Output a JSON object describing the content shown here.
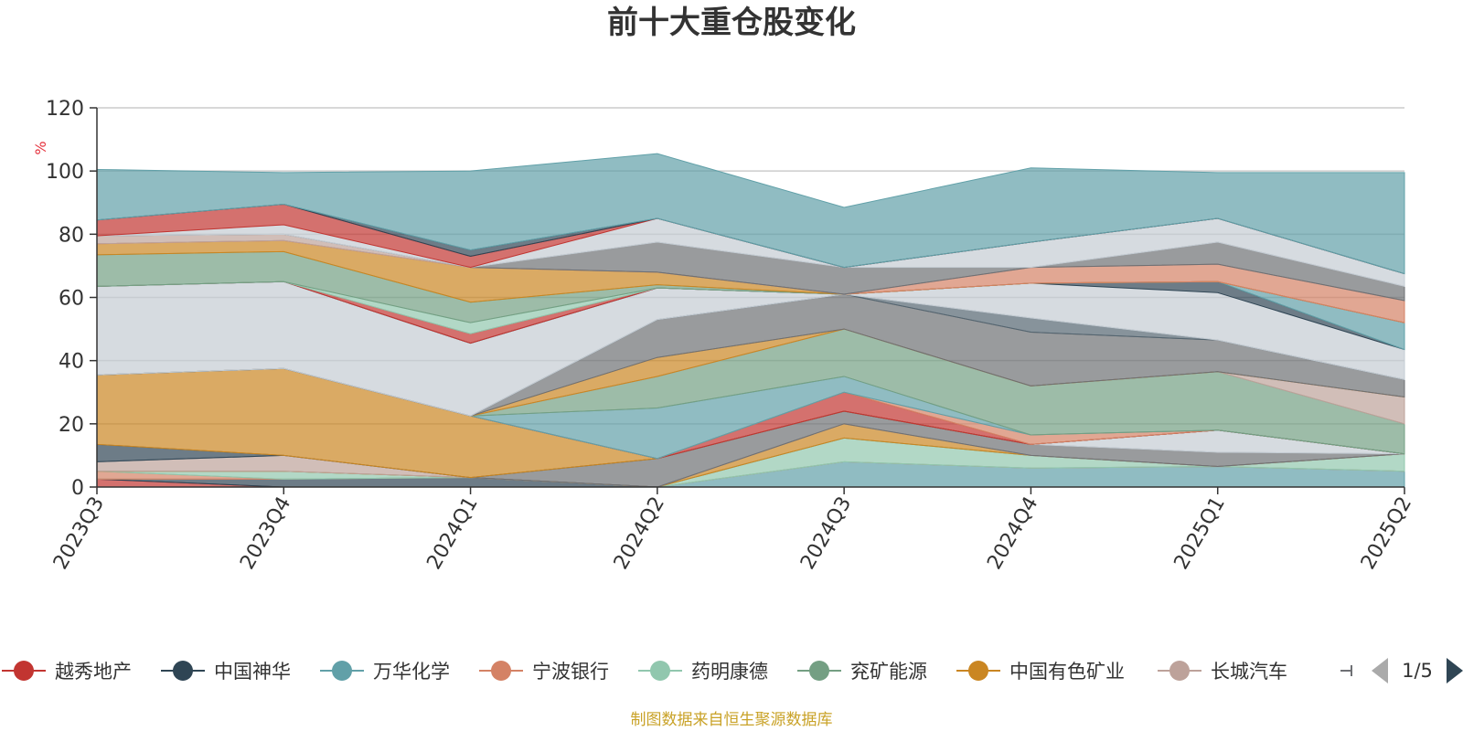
{
  "chart_data": {
    "type": "area",
    "title": "前十大重仓股变化",
    "ylabel": "%",
    "ylim": [
      0,
      120
    ],
    "yticks": [
      "0",
      "20",
      "40",
      "60",
      "80",
      "100",
      "120"
    ],
    "categories": [
      "2023Q3",
      "2023Q4",
      "2024Q1",
      "2024Q2",
      "2024Q3",
      "2024Q4",
      "2025Q1",
      "2025Q2"
    ],
    "grid": true,
    "legend_position": "bottom",
    "series": [
      {
        "name": "越秀地产",
        "color": "#c23531",
        "values": [
          2.5,
          0,
          0,
          0,
          0,
          0,
          0,
          0
        ]
      },
      {
        "name": "中国神华",
        "color": "#2f4554",
        "values": [
          0,
          2.5,
          3.0,
          0,
          0,
          0,
          0,
          0
        ]
      },
      {
        "name": "万华化学",
        "color": "#61a0a8",
        "values": [
          0,
          0,
          0,
          0,
          8.0,
          6.0,
          6.5,
          5.0
        ]
      },
      {
        "name": "宁波银行",
        "color": "#d48265",
        "values": [
          2.5,
          0,
          0,
          0,
          0,
          0,
          0,
          0
        ]
      },
      {
        "name": "药明康德",
        "color": "#91c7ae",
        "values": [
          0,
          2.5,
          0,
          0,
          7.5,
          4.0,
          0,
          5.5
        ]
      },
      {
        "name": "兖矿能源",
        "color": "#749f83",
        "values": [
          0,
          0,
          0,
          0,
          0,
          0,
          0,
          0
        ]
      },
      {
        "name": "中国有色矿业",
        "color": "#ca8622",
        "values": [
          0,
          0,
          0,
          0,
          4.5,
          0,
          0,
          0
        ]
      },
      {
        "name": "长城汽车",
        "color": "#bda29a",
        "values": [
          3.0,
          5.0,
          0,
          0,
          0,
          0,
          0,
          0
        ]
      },
      {
        "name": "",
        "color": "#6e7074",
        "values": [
          0,
          0,
          0,
          9.0,
          4.0,
          3.5,
          4.5,
          0
        ]
      },
      {
        "name": "",
        "color": "#c4ccd3",
        "values": [
          0,
          0,
          0,
          0,
          0,
          0,
          7.0,
          0
        ]
      },
      {
        "name": "",
        "color": "#2f4554",
        "values": [
          5.5,
          0,
          0,
          0,
          0,
          0,
          0,
          0
        ]
      },
      {
        "name": "",
        "color": "#ca8622",
        "values": [
          22.0,
          27.5,
          19.5,
          0,
          0,
          0,
          0,
          0
        ]
      },
      {
        "name": "",
        "color": "#6e7074",
        "values": [
          0,
          0,
          0,
          0,
          0,
          0,
          0,
          0
        ]
      },
      {
        "name": "",
        "color": "#c23531",
        "values": [
          0,
          0,
          0,
          0,
          6.0,
          0,
          0,
          0
        ]
      },
      {
        "name": "",
        "color": "#d48265",
        "values": [
          0,
          0,
          0,
          0,
          0,
          3.0,
          0,
          0
        ]
      },
      {
        "name": "",
        "color": "#61a0a8",
        "values": [
          0,
          0,
          0,
          16.0,
          5.0,
          0,
          0,
          0
        ]
      },
      {
        "name": "",
        "color": "#749f83",
        "values": [
          0,
          0,
          0,
          10.0,
          15.0,
          15.5,
          18.5,
          9.5
        ]
      },
      {
        "name": "",
        "color": "#bda29a",
        "values": [
          0,
          0,
          0,
          0,
          0,
          0,
          0,
          8.5
        ]
      },
      {
        "name": "",
        "color": "#ca8622",
        "values": [
          0,
          0,
          0,
          6.0,
          0,
          0,
          0,
          0
        ]
      },
      {
        "name": "",
        "color": "#6e7074",
        "values": [
          0,
          0,
          0,
          12.0,
          11.0,
          17.0,
          10.0,
          5.5
        ]
      },
      {
        "name": "",
        "color": "#546570",
        "values": [
          0,
          0,
          0,
          0,
          0,
          4.5,
          0,
          0
        ]
      },
      {
        "name": "",
        "color": "#c4ccd3",
        "values": [
          28.0,
          27.5,
          23.0,
          10.0,
          0,
          11.0,
          15.0,
          9.5
        ]
      },
      {
        "name": "",
        "color": "#2f4554",
        "values": [
          0,
          0,
          0,
          0,
          0,
          0,
          3.5,
          0
        ]
      },
      {
        "name": "",
        "color": "#61a0a8",
        "values": [
          0,
          0,
          0,
          0,
          0,
          0,
          0,
          8.5
        ]
      },
      {
        "name": "",
        "color": "#c23531",
        "values": [
          0,
          0,
          3.0,
          0,
          0,
          0,
          0,
          0
        ]
      },
      {
        "name": "",
        "color": "#91c7ae",
        "values": [
          0,
          0,
          3.5,
          0,
          0,
          0,
          0,
          0
        ]
      },
      {
        "name": "",
        "color": "#749f83",
        "values": [
          10.0,
          9.5,
          6.5,
          1.0,
          0,
          0,
          0,
          0
        ]
      },
      {
        "name": "",
        "color": "#ca8622",
        "values": [
          3.5,
          3.5,
          11.0,
          4.0,
          0,
          0,
          0,
          0
        ]
      },
      {
        "name": "",
        "color": "#d48265",
        "values": [
          0,
          0,
          0,
          0,
          0,
          5.0,
          5.5,
          7.0
        ]
      },
      {
        "name": "",
        "color": "#bda29a",
        "values": [
          2.5,
          2.0,
          0,
          0,
          0,
          0,
          0,
          0
        ]
      },
      {
        "name": "",
        "color": "#6e7074",
        "values": [
          0,
          0,
          0,
          9.5,
          8.5,
          0,
          7.0,
          4.5
        ]
      },
      {
        "name": "",
        "color": "#c4ccd3",
        "values": [
          0,
          3.0,
          0,
          7.5,
          0,
          8.0,
          7.5,
          4.0
        ]
      },
      {
        "name": "",
        "color": "#c23531",
        "values": [
          5.0,
          6.5,
          3.5,
          0,
          0,
          0,
          0,
          0
        ]
      },
      {
        "name": "",
        "color": "#2f4554",
        "values": [
          0,
          0,
          2.0,
          0,
          0,
          0,
          0,
          0
        ]
      },
      {
        "name": "",
        "color": "#61a0a8",
        "values": [
          16.0,
          10.0,
          25.0,
          20.5,
          19.0,
          23.5,
          14.5,
          32.0
        ]
      }
    ],
    "legend": {
      "visible_items": [
        "越秀地产",
        "中国神华",
        "万华化学",
        "宁波银行",
        "药明康德",
        "兖矿能源",
        "中国有色矿业",
        "长城汽车"
      ],
      "page_indicator": "1/5"
    },
    "source_note": "制图数据来自恒生聚源数据库"
  }
}
